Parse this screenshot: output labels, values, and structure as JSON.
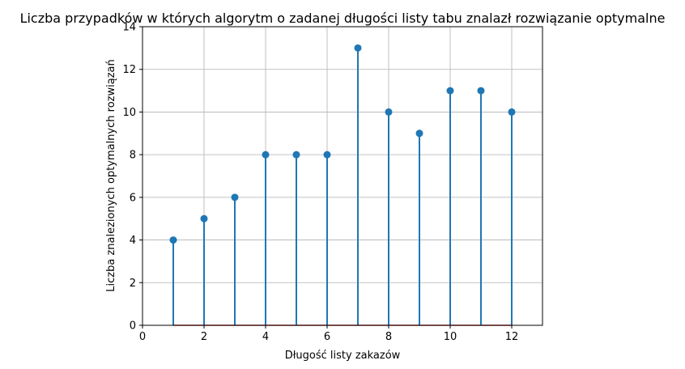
{
  "chart_data": {
    "type": "stem",
    "title": "Liczba przypadków w których algorytm o zadanej długości listy tabu znalazł rozwiązanie optymalne",
    "xlabel": "Długość listy zakazów",
    "ylabel": "Liczba znalezionych optymalnych rozwiązań",
    "x": [
      1,
      2,
      3,
      4,
      5,
      6,
      7,
      8,
      9,
      10,
      11,
      12
    ],
    "y": [
      4,
      5,
      6,
      8,
      8,
      8,
      13,
      10,
      9,
      11,
      11,
      10
    ],
    "xlim": [
      0,
      13
    ],
    "ylim": [
      0,
      14
    ],
    "xticks": [
      0,
      2,
      4,
      6,
      8,
      10,
      12
    ],
    "yticks": [
      0,
      2,
      4,
      6,
      8,
      10,
      12,
      14
    ],
    "grid": true,
    "colors": {
      "stem": "#1f77b4",
      "baseline": "#d62728",
      "grid": "#b0b0b0"
    }
  }
}
